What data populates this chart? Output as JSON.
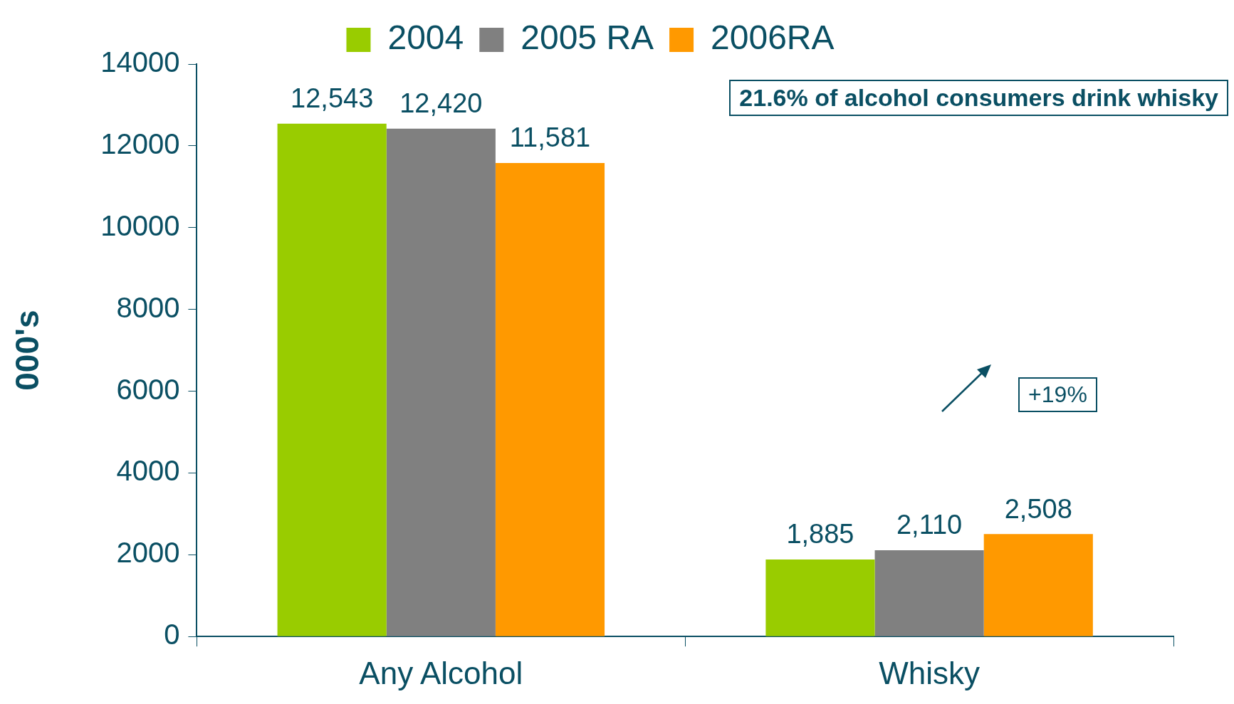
{
  "chart_data": {
    "type": "bar",
    "categories": [
      "Any Alcohol",
      "Whisky"
    ],
    "series": [
      {
        "name": "2004",
        "color": "#99cc00",
        "values": [
          12543,
          1885
        ],
        "value_labels": [
          "12,543",
          "1,885"
        ]
      },
      {
        "name": "2005 RA",
        "color": "#808080",
        "values": [
          12420,
          2110
        ],
        "value_labels": [
          "12,420",
          "2,110"
        ]
      },
      {
        "name": "2006RA",
        "color": "#ff9900",
        "values": [
          11581,
          2508
        ],
        "value_labels": [
          "11,581",
          "2,508"
        ]
      }
    ],
    "ylabel": "000's",
    "ylim": [
      0,
      14000
    ],
    "yticks": [
      0,
      2000,
      4000,
      6000,
      8000,
      10000,
      12000,
      14000
    ],
    "grid": false,
    "legend": "top",
    "annotations": [
      "21.6% of alcohol consumers drink whisky",
      "+19%"
    ]
  }
}
